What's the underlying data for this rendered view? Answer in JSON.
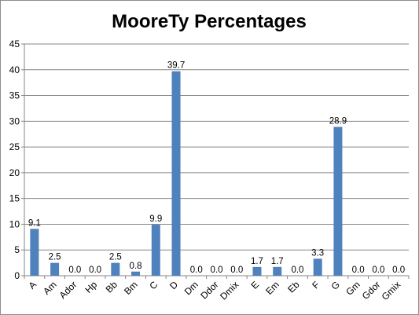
{
  "chart_data": {
    "type": "bar",
    "title": "MooreTy Percentages",
    "xlabel": "",
    "ylabel": "",
    "categories": [
      "A",
      "Am",
      "Ador",
      "Hp",
      "Bb",
      "Bm",
      "C",
      "D",
      "Dm",
      "Ddor",
      "Dmix",
      "E",
      "Em",
      "Eb",
      "F",
      "G",
      "Gm",
      "Gdor",
      "Gmix"
    ],
    "values": [
      9.1,
      2.5,
      0.0,
      0.0,
      2.5,
      0.8,
      9.9,
      39.7,
      0.0,
      0.0,
      0.0,
      1.7,
      1.7,
      0.0,
      3.3,
      28.9,
      0.0,
      0.0,
      0.0
    ],
    "data_labels": [
      "9.1",
      "2.5",
      "0.0",
      "0.0",
      "2.5",
      "0.8",
      "9.9",
      "39.7",
      "0.0",
      "0.0",
      "0.0",
      "1.7",
      "1.7",
      "0.0",
      "3.3",
      "28.9",
      "0.0",
      "0.0",
      "0.0"
    ],
    "yticks": [
      "0",
      "5",
      "10",
      "15",
      "20",
      "25",
      "30",
      "35",
      "40",
      "45"
    ],
    "ylim": [
      0,
      45
    ],
    "grid": true,
    "legend": "none",
    "colors": {
      "bar": "#4f81bd",
      "grid": "#868686",
      "axis": "#868686"
    }
  }
}
